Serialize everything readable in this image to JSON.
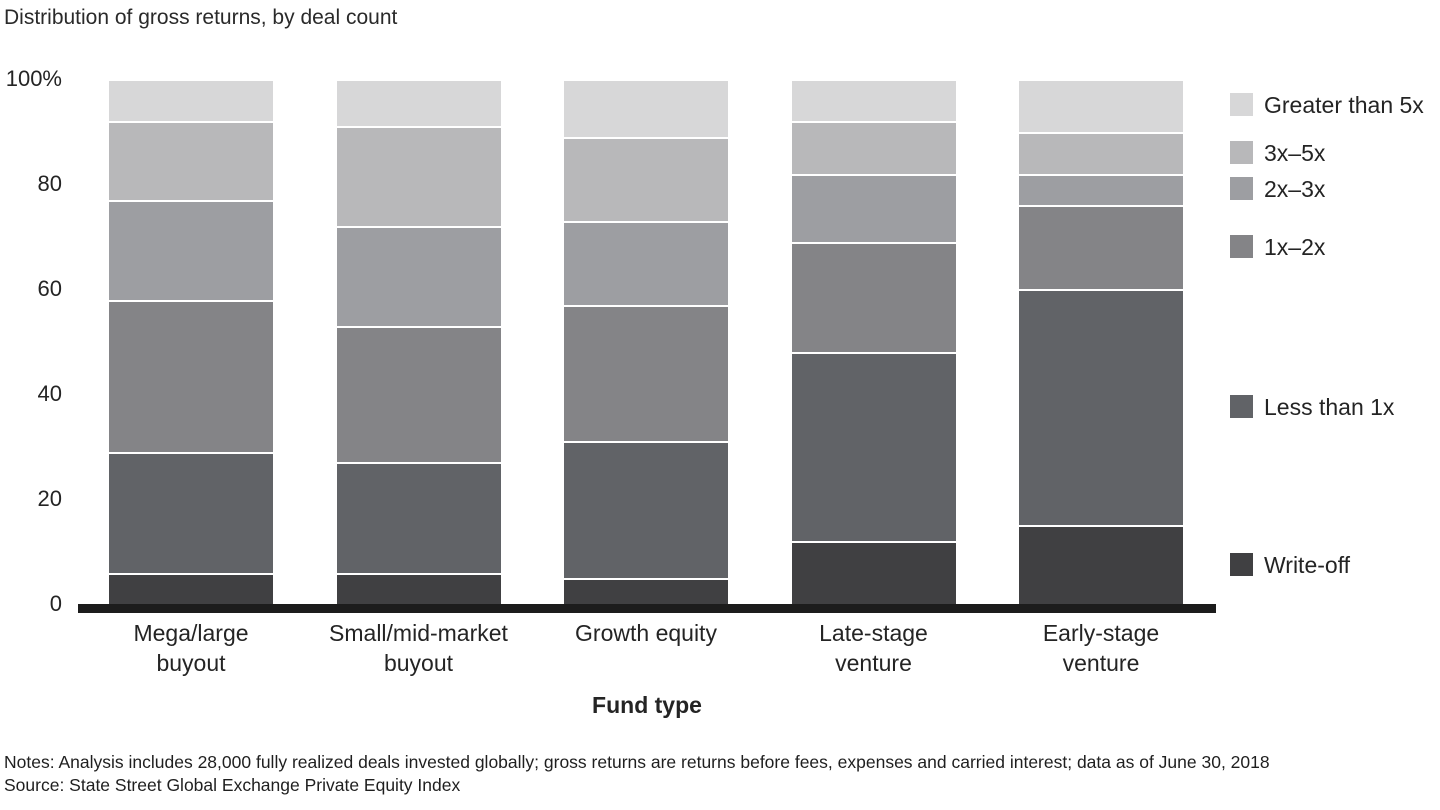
{
  "header": {
    "title": "Distribution of gross returns, by deal count"
  },
  "chart_data": {
    "type": "bar",
    "stacked": true,
    "title": "Distribution of gross returns, by deal count",
    "xlabel": "Fund type",
    "ylabel": "",
    "ylim": [
      0,
      100
    ],
    "grid": false,
    "legend_position": "right",
    "y_axis_ticks": [
      {
        "label": "100%",
        "value": 100
      },
      {
        "label": "80",
        "value": 80
      },
      {
        "label": "60",
        "value": 60
      },
      {
        "label": "40",
        "value": 40
      },
      {
        "label": "20",
        "value": 20
      },
      {
        "label": "0",
        "value": 0
      }
    ],
    "categories": [
      {
        "slug": "mega-large-buyout",
        "lines": [
          "Mega/large",
          "buyout"
        ]
      },
      {
        "slug": "small-mid-market-buyout",
        "lines": [
          "Small/mid-market",
          "buyout"
        ]
      },
      {
        "slug": "growth-equity",
        "lines": [
          "Growth equity"
        ]
      },
      {
        "slug": "late-stage-venture",
        "lines": [
          "Late-stage",
          "venture"
        ]
      },
      {
        "slug": "early-stage-venture",
        "lines": [
          "Early-stage",
          "venture"
        ]
      }
    ],
    "series": [
      {
        "name": "Write-off",
        "color": "#404042",
        "values": [
          6,
          6,
          5,
          12,
          15
        ]
      },
      {
        "name": "Less than 1x",
        "color": "#616367",
        "values": [
          23,
          21,
          26,
          36,
          45
        ]
      },
      {
        "name": "1x–2x",
        "color": "#848487",
        "values": [
          29,
          26,
          26,
          21,
          16
        ]
      },
      {
        "name": "2x–3x",
        "color": "#9d9ea2",
        "values": [
          19,
          19,
          16,
          13,
          6
        ]
      },
      {
        "name": "3x–5x",
        "color": "#b8b8ba",
        "values": [
          15,
          19,
          16,
          10,
          8
        ]
      },
      {
        "name": "Greater than 5x",
        "color": "#d7d7d8",
        "values": [
          8,
          9,
          11,
          8,
          10
        ]
      }
    ],
    "legend_order_top_to_bottom": [
      "Greater than 5x",
      "3x–5x",
      "2x–3x",
      "1x–2x",
      "Less than 1x",
      "Write-off"
    ]
  },
  "footnotes": {
    "notes": "Notes: Analysis includes 28,000 fully realized deals invested globally; gross returns are returns before fees, expenses and carried interest; data as of June 30, 2018",
    "source": "Source: State Street Global Exchange Private Equity Index"
  }
}
